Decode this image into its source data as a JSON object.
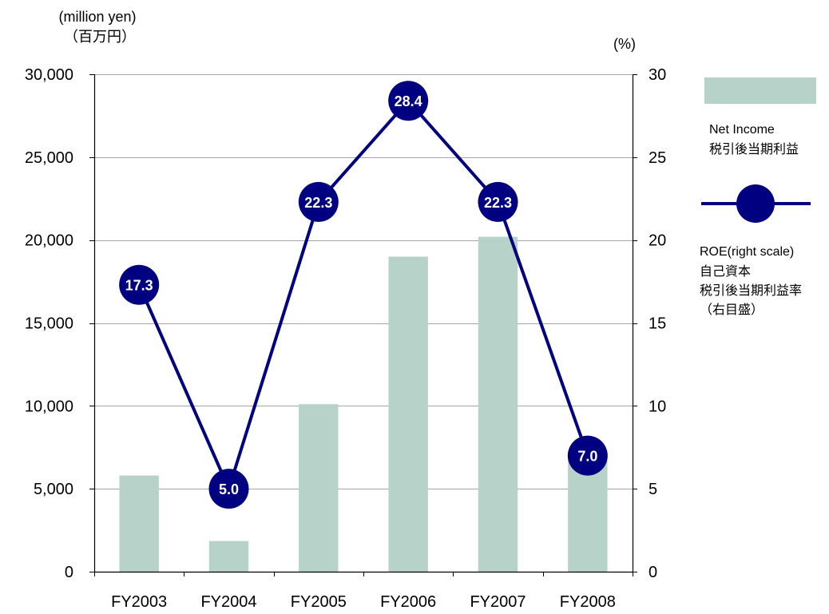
{
  "chart_data": {
    "type": "bar",
    "categories": [
      "FY2003",
      "FY2004",
      "FY2005",
      "FY2006",
      "FY2007",
      "FY2008"
    ],
    "series": [
      {
        "name": "Net Income",
        "name_ja": "税引後当期利益",
        "type": "bar",
        "axis": "left",
        "values": [
          5800,
          1850,
          10100,
          19000,
          20200,
          6900
        ],
        "color": "#b7d3c9"
      },
      {
        "name": "ROE(right scale)",
        "name_ja": [
          "自己資本",
          "税引後当期利益率",
          "（右目盛）"
        ],
        "type": "line",
        "axis": "right",
        "values": [
          17.3,
          5.0,
          22.3,
          28.4,
          22.3,
          7.0
        ],
        "data_labels": [
          "17.3",
          "5.0",
          "22.3",
          "28.4",
          "22.3",
          "7.0"
        ],
        "color": "#000080"
      }
    ],
    "left_axis": {
      "unit_label": "(million yen)",
      "unit_label_ja": "（百万円）",
      "ylim": [
        0,
        30000
      ],
      "ticks": [
        0,
        5000,
        10000,
        15000,
        20000,
        25000,
        30000
      ],
      "tick_labels": [
        "0",
        "5,000",
        "10,000",
        "15,000",
        "20,000",
        "25,000",
        "30,000"
      ]
    },
    "right_axis": {
      "unit_label": "(%)",
      "ylim": [
        0,
        30
      ],
      "ticks": [
        0,
        5,
        10,
        15,
        20,
        25,
        30
      ],
      "tick_labels": [
        "0",
        "5",
        "10",
        "15",
        "20",
        "25",
        "30"
      ]
    },
    "grid": true,
    "legend_position": "right"
  }
}
